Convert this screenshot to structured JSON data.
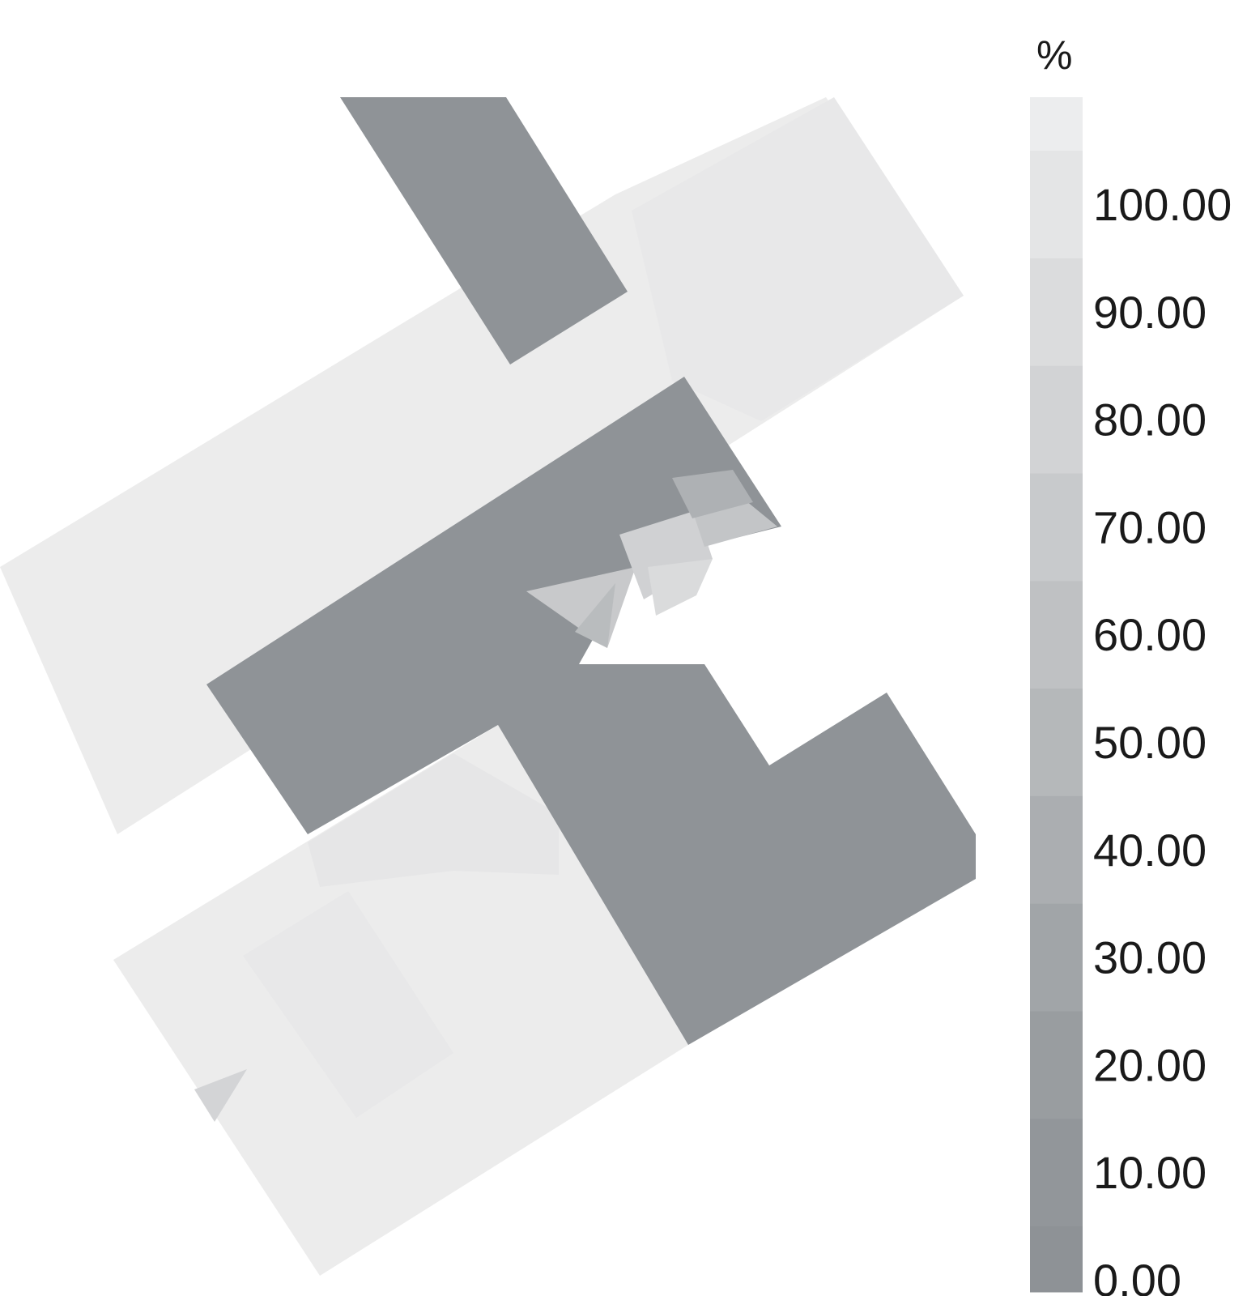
{
  "chart_data": {
    "type": "heatmap",
    "title": "",
    "colorbar": {
      "unit": "%",
      "range": [
        0,
        100
      ],
      "tick_labels": [
        "100.00",
        "90.00",
        "80.00",
        "70.00",
        "60.00",
        "50.00",
        "40.00",
        "30.00",
        "20.00",
        "10.00",
        "0.00"
      ],
      "tick_values": [
        100,
        90,
        80,
        70,
        60,
        50,
        40,
        30,
        20,
        10,
        0
      ],
      "band_colors": [
        "#8e9296",
        "#92969a",
        "#999da0",
        "#a1a5a8",
        "#abaeb1",
        "#b5b8ba",
        "#bfc1c3",
        "#c8cacc",
        "#d2d3d5",
        "#dbdcdd",
        "#e4e5e6",
        "#ecedee"
      ]
    },
    "regions": [
      {
        "name": "upper-left building",
        "value": 100
      },
      {
        "name": "upper-right building",
        "value": 100
      },
      {
        "name": "north wing",
        "value": 0
      },
      {
        "name": "central corridor",
        "value": 0
      },
      {
        "name": "south-east wing",
        "value": 0
      },
      {
        "name": "lower-left building",
        "value": 100
      },
      {
        "name": "transition zone near corridor notch",
        "value": 65
      },
      {
        "name": "small triangle lower-left",
        "value": 80
      }
    ]
  }
}
